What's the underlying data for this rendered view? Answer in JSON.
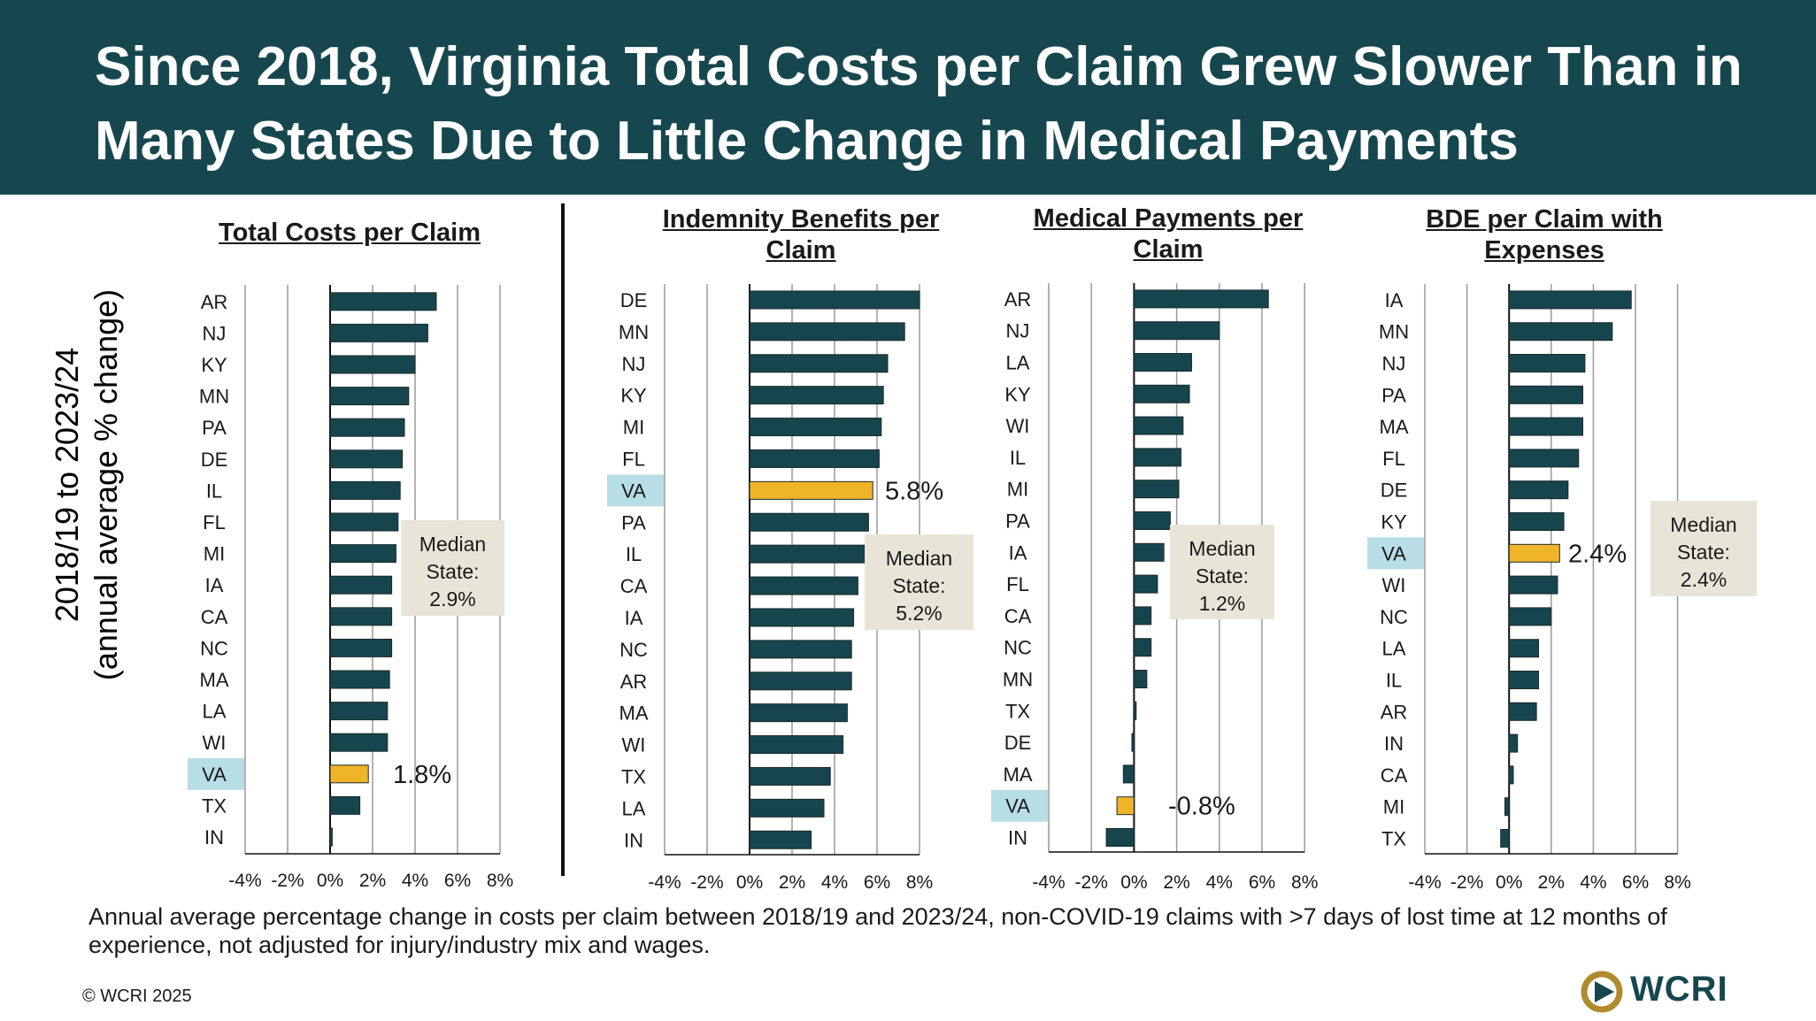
{
  "title": "Since 2018, Virginia Total Costs per Claim Grew Slower Than in Many States Due to Little Change in Medical Payments",
  "y_axis_title_line1": "2018/19 to 2023/24",
  "y_axis_title_line2": "(annual average % change)",
  "footnote": "Annual average percentage change in costs per claim between 2018/19 and 2023/24, non-COVID-19 claims with >7 days of lost time at 12 months of experience, not adjusted for injury/industry mix and wages.",
  "copyright": "© WCRI 2025",
  "logo_text": "WCRI",
  "colors": {
    "banner": "#16474f",
    "bar": "#16454d",
    "highlight_bar": "#f0b429",
    "highlight_label_bg": "#b7dde6",
    "median_box": "#e8e5d8",
    "grid": "#9a9a9a"
  },
  "chart_data": [
    {
      "type": "bar",
      "orientation": "horizontal",
      "title": "Total Costs per Claim",
      "categories": [
        "AR",
        "NJ",
        "KY",
        "MN",
        "PA",
        "DE",
        "IL",
        "FL",
        "MI",
        "IA",
        "CA",
        "NC",
        "MA",
        "LA",
        "WI",
        "VA",
        "TX",
        "IN"
      ],
      "values": [
        5.0,
        4.6,
        4.0,
        3.7,
        3.5,
        3.4,
        3.3,
        3.2,
        3.1,
        2.9,
        2.9,
        2.9,
        2.8,
        2.7,
        2.7,
        1.8,
        1.4,
        0.1
      ],
      "highlight": "VA",
      "highlight_label": "1.8%",
      "median_label": [
        "Median",
        "State:",
        "2.9%"
      ],
      "xlim": [
        -4,
        8
      ],
      "xticks": [
        "-4%",
        "-2%",
        "0%",
        "2%",
        "4%",
        "6%",
        "8%"
      ]
    },
    {
      "type": "bar",
      "orientation": "horizontal",
      "title": "Indemnity Benefits per Claim",
      "categories": [
        "DE",
        "MN",
        "NJ",
        "KY",
        "MI",
        "FL",
        "VA",
        "PA",
        "IL",
        "CA",
        "IA",
        "NC",
        "AR",
        "MA",
        "WI",
        "TX",
        "LA",
        "IN"
      ],
      "values": [
        8.0,
        7.3,
        6.5,
        6.3,
        6.2,
        6.1,
        5.8,
        5.6,
        5.4,
        5.1,
        4.9,
        4.8,
        4.8,
        4.6,
        4.4,
        3.8,
        3.5,
        2.9
      ],
      "highlight": "VA",
      "highlight_label": "5.8%",
      "median_label": [
        "Median",
        "State:",
        "5.2%"
      ],
      "xlim": [
        -4,
        8
      ],
      "xticks": [
        "-4%",
        "-2%",
        "0%",
        "2%",
        "4%",
        "6%",
        "8%"
      ]
    },
    {
      "type": "bar",
      "orientation": "horizontal",
      "title": "Medical Payments per Claim",
      "categories": [
        "AR",
        "NJ",
        "LA",
        "KY",
        "WI",
        "IL",
        "MI",
        "PA",
        "IA",
        "FL",
        "CA",
        "NC",
        "MN",
        "TX",
        "DE",
        "MA",
        "VA",
        "IN"
      ],
      "values": [
        6.3,
        4.0,
        2.7,
        2.6,
        2.3,
        2.2,
        2.1,
        1.7,
        1.4,
        1.1,
        0.8,
        0.8,
        0.6,
        0.1,
        -0.1,
        -0.5,
        -0.8,
        -1.3
      ],
      "highlight": "VA",
      "highlight_label": "-0.8%",
      "median_label": [
        "Median",
        "State:",
        "1.2%"
      ],
      "xlim": [
        -4,
        8
      ],
      "xticks": [
        "-4%",
        "-2%",
        "0%",
        "2%",
        "4%",
        "6%",
        "8%"
      ]
    },
    {
      "type": "bar",
      "orientation": "horizontal",
      "title": "BDE per Claim with Expenses",
      "categories": [
        "IA",
        "MN",
        "NJ",
        "PA",
        "MA",
        "FL",
        "DE",
        "KY",
        "VA",
        "WI",
        "NC",
        "LA",
        "IL",
        "AR",
        "IN",
        "CA",
        "MI",
        "TX"
      ],
      "values": [
        5.8,
        4.9,
        3.6,
        3.5,
        3.5,
        3.3,
        2.8,
        2.6,
        2.4,
        2.3,
        2.0,
        1.4,
        1.4,
        1.3,
        0.4,
        0.2,
        -0.2,
        -0.4
      ],
      "highlight": "VA",
      "highlight_label": "2.4%",
      "median_label": [
        "Median",
        "State:",
        "2.4%"
      ],
      "xlim": [
        -4,
        8
      ],
      "xticks": [
        "-4%",
        "-2%",
        "0%",
        "2%",
        "4%",
        "6%",
        "8%"
      ]
    }
  ]
}
